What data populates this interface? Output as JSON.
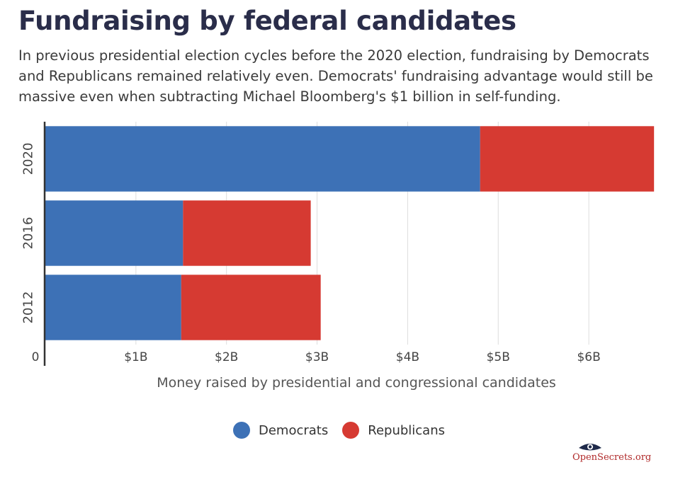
{
  "header": {
    "title": "Fundraising by federal candidates",
    "subtitle": "In previous presidential election cycles before the 2020 election, fundraising by Democrats and Republicans remained  relatively even. Democrats' fundraising advantage would still be massive even when subtracting Michael Bloomberg's $1 billion in self-funding."
  },
  "chart_data": {
    "type": "bar",
    "orientation": "horizontal",
    "stacked": true,
    "categories": [
      "2020",
      "2016",
      "2012"
    ],
    "series": [
      {
        "name": "Democrats",
        "color": "#3d71b6",
        "values": [
          4.8,
          1.52,
          1.5
        ]
      },
      {
        "name": "Republicans",
        "color": "#d63a32",
        "values": [
          1.92,
          1.41,
          1.54
        ]
      }
    ],
    "xlabel": "Money raised by presidential and congressional candidates",
    "ylabel": "",
    "xlim": [
      0,
      6.75
    ],
    "x_ticks": [
      0,
      1,
      2,
      3,
      4,
      5,
      6
    ],
    "x_tick_labels": [
      "0",
      "$1B",
      "$2B",
      "$3B",
      "$4B",
      "$5B",
      "$6B"
    ],
    "grid": true,
    "legend_position": "bottom"
  },
  "legend": {
    "items": [
      {
        "label": "Democrats",
        "color": "#3d71b6"
      },
      {
        "label": "Republicans",
        "color": "#d63a32"
      }
    ]
  },
  "brand": {
    "label": "OpenSecrets.org",
    "icon": "eye-logo-icon"
  }
}
